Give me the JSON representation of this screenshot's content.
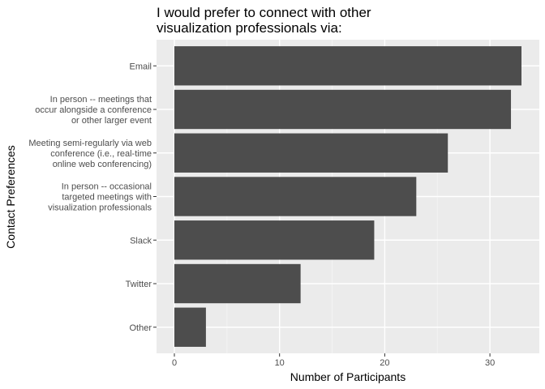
{
  "chart_data": {
    "type": "bar",
    "orientation": "horizontal",
    "title": [
      "I would prefer to connect with other",
      "visualization professionals via:"
    ],
    "xlabel": "Number of Participants",
    "ylabel": "Contact Preferences",
    "xlim": [
      0,
      34.5
    ],
    "xticks": [
      0,
      10,
      20,
      30
    ],
    "grid": true,
    "categories": [
      [
        "Email"
      ],
      [
        "In person -- meetings that",
        "occur alongside a conference",
        "or other larger event"
      ],
      [
        "Meeting semi-regularly via web",
        "conference (i.e., real-time",
        "online web conferencing)"
      ],
      [
        "In person -- occasional",
        "targeted meetings with",
        "visualization professionals"
      ],
      [
        "Slack"
      ],
      [
        "Twitter"
      ],
      [
        "Other"
      ]
    ],
    "values": [
      33,
      32,
      26,
      23,
      19,
      12,
      3
    ],
    "colors": {
      "bar": "#4d4d4d",
      "panel": "#ebebeb",
      "grid_major": "#ffffff",
      "grid_minor": "#f5f5f5",
      "tick": "#333333"
    }
  }
}
